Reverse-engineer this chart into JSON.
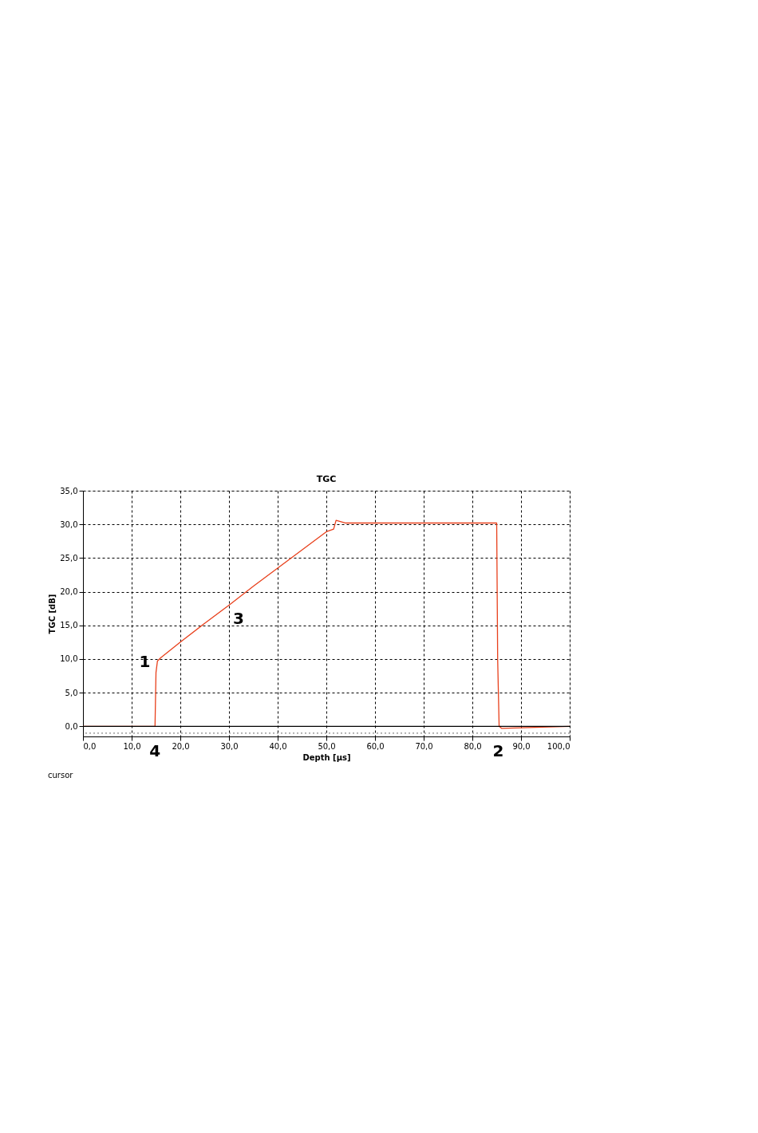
{
  "chart_data": {
    "type": "line",
    "title": "TGC",
    "xlabel": "Depth [µs]",
    "ylabel": "TGC [dB]",
    "x": [
      0,
      14.8,
      15.0,
      15.3,
      16,
      20,
      25,
      30,
      35,
      40,
      45,
      50,
      51.5,
      52,
      54,
      60,
      70,
      80,
      85,
      85.2,
      85.5,
      86,
      90,
      100
    ],
    "series": [
      {
        "color": "#e8401c",
        "values": [
          0,
          0,
          8,
          9.7,
          10.2,
          12.5,
          15.3,
          18,
          20.8,
          23.5,
          26.2,
          28.9,
          29.3,
          30.6,
          30.2,
          30.2,
          30.2,
          30.2,
          30.2,
          10,
          0,
          -0.3,
          -0.2,
          0
        ]
      }
    ],
    "xlim": [
      0,
      100
    ],
    "ylim": [
      -1.5,
      35
    ],
    "xticks": [
      {
        "value": 0,
        "label": "0,0"
      },
      {
        "value": 10,
        "label": "10,0"
      },
      {
        "value": 20,
        "label": "20,0"
      },
      {
        "value": 30,
        "label": "30,0"
      },
      {
        "value": 40,
        "label": "40,0"
      },
      {
        "value": 50,
        "label": "50,0"
      },
      {
        "value": 60,
        "label": "60,0"
      },
      {
        "value": 70,
        "label": "70,0"
      },
      {
        "value": 80,
        "label": "80,0"
      },
      {
        "value": 90,
        "label": "90,0"
      },
      {
        "value": 100,
        "label": "100,0"
      }
    ],
    "yticks": [
      {
        "value": 0,
        "label": "0,0"
      },
      {
        "value": 5,
        "label": "5,0"
      },
      {
        "value": 10,
        "label": "10,0"
      },
      {
        "value": 15,
        "label": "15,0"
      },
      {
        "value": 20,
        "label": "20,0"
      },
      {
        "value": 25,
        "label": "25,0"
      },
      {
        "value": 30,
        "label": "30,0"
      },
      {
        "value": 35,
        "label": "35,0"
      }
    ],
    "grid": true,
    "marker": "none",
    "line_style": "solid",
    "ref_lines": [
      {
        "axis": "y",
        "value": 0,
        "color": "#000000",
        "line_style": "solid"
      },
      {
        "axis": "y",
        "value": -1,
        "color": "#888888",
        "line_style": "dotted"
      }
    ],
    "annotations": [
      {
        "text": "1",
        "x": 15.3,
        "y": 9.7
      },
      {
        "text": "2",
        "x": 85.3,
        "y": 0
      },
      {
        "text": "3",
        "x": 30,
        "y": 18
      },
      {
        "text": "4",
        "x": 14.8,
        "y": 0
      },
      "cursor"
    ]
  }
}
